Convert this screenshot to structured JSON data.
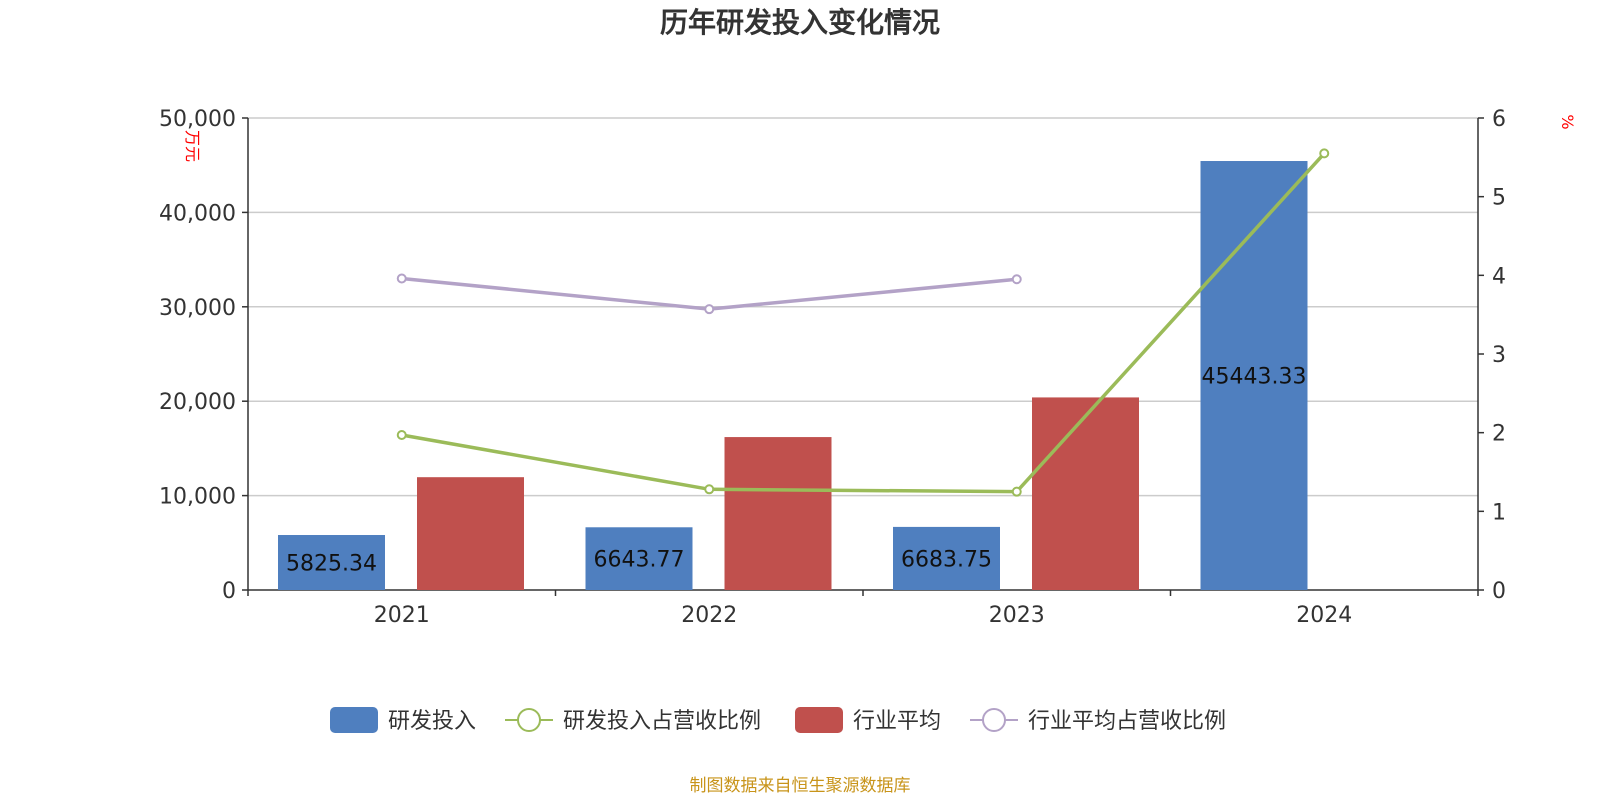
{
  "chart_data": {
    "type": "bar",
    "title": "历年研发投入变化情况",
    "categories": [
      "2021",
      "2022",
      "2023",
      "2024"
    ],
    "y_left": {
      "unit": "万元",
      "ylim": [
        0,
        50000
      ],
      "tick_labels": [
        "0",
        "10,000",
        "20,000",
        "30,000",
        "40,000",
        "50,000"
      ],
      "tick_values": [
        0,
        10000,
        20000,
        30000,
        40000,
        50000
      ]
    },
    "y_right": {
      "unit": "%",
      "ylim": [
        0,
        6
      ],
      "tick_labels": [
        "0",
        "1",
        "2",
        "3",
        "4",
        "5",
        "6"
      ],
      "tick_values": [
        0,
        1,
        2,
        3,
        4,
        5,
        6
      ]
    },
    "series": [
      {
        "name": "研发投入",
        "kind": "bar",
        "axis": "left",
        "color": "#4f7fbf",
        "values": [
          5825.34,
          6643.77,
          6683.75,
          45443.33
        ],
        "labels": [
          "5825.34",
          "6643.77",
          "6683.75",
          "45443.33"
        ]
      },
      {
        "name": "研发投入占营收比例",
        "kind": "line",
        "axis": "right",
        "color": "#9bbb59",
        "values": [
          1.97,
          1.28,
          1.25,
          5.55
        ]
      },
      {
        "name": "行业平均",
        "kind": "bar",
        "axis": "left",
        "color": "#c0504d",
        "values": [
          11950,
          16200,
          20400,
          null
        ]
      },
      {
        "name": "行业平均占营收比例",
        "kind": "line",
        "axis": "right",
        "color": "#b3a2c7",
        "values": [
          3.96,
          3.57,
          3.95,
          null
        ]
      }
    ],
    "grid": true,
    "legend_position": "bottom-center"
  },
  "source_text": "制图数据来自恒生聚源数据库"
}
